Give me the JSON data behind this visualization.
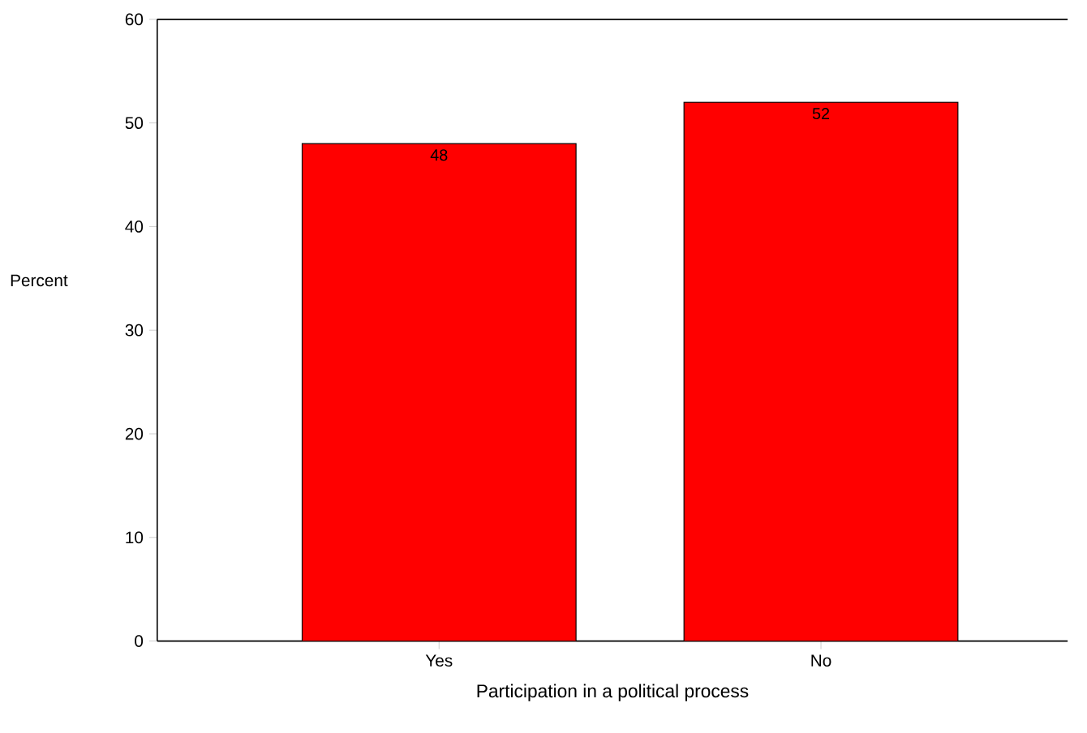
{
  "chart_data": {
    "type": "bar",
    "xlabel": "Participation in a political process",
    "ylabel": "Percent",
    "categories": [
      "Yes",
      "No"
    ],
    "values": [
      48,
      52
    ],
    "color": "#ff0000",
    "ylim": [
      0,
      60
    ],
    "yticks": [
      0,
      10,
      20,
      30,
      40,
      50,
      60
    ],
    "data_labels": true,
    "grid": false
  }
}
